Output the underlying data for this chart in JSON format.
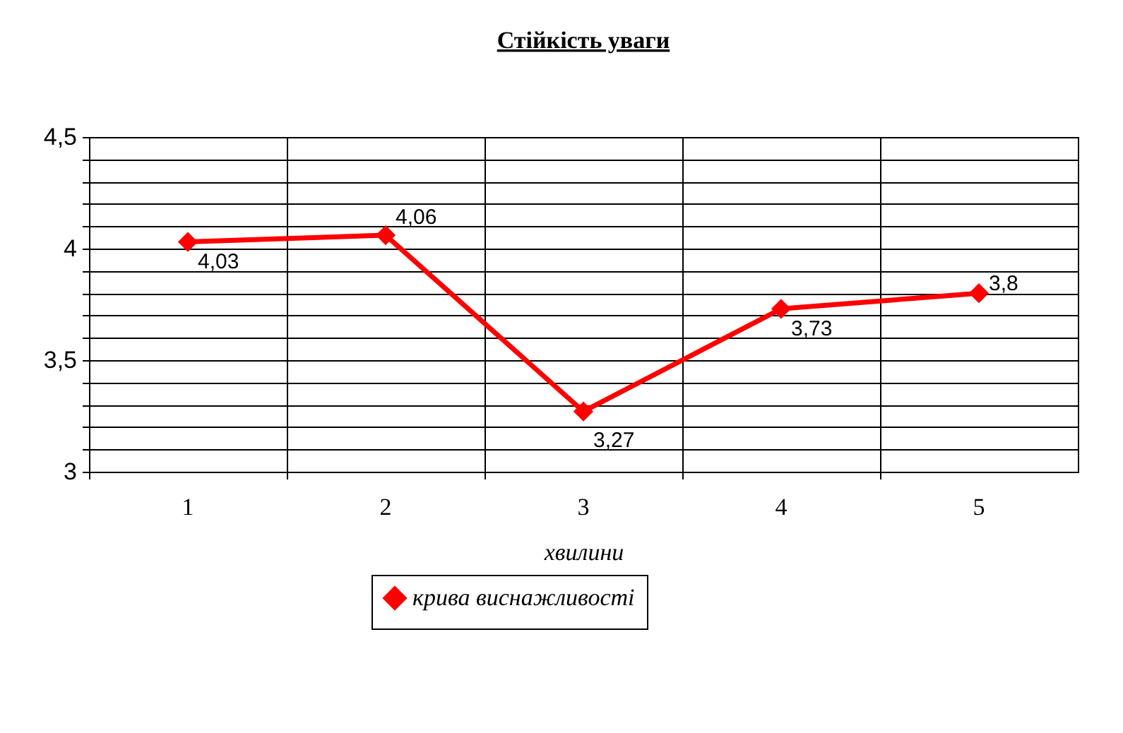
{
  "chart_data": {
    "type": "line",
    "title": "Стійкість уваги",
    "xlabel": "хвилини",
    "categories": [
      "1",
      "2",
      "3",
      "4",
      "5"
    ],
    "series": [
      {
        "name": "крива виснажливості",
        "color": "#ff0000",
        "values": [
          4.03,
          4.06,
          3.27,
          3.73,
          3.8
        ],
        "value_labels": [
          "4,03",
          "4,06",
          "3,27",
          "3,73",
          "3,8"
        ]
      }
    ],
    "ylim": [
      3,
      4.5
    ],
    "yticks": [
      3,
      {
        "value": 3.1,
        "label": null
      },
      {
        "value": 3.2,
        "label": null
      },
      {
        "value": 3.3,
        "label": null
      },
      {
        "value": 3.4,
        "label": null
      },
      {
        "value": 3.5,
        "label": "3,5"
      },
      {
        "value": 3.6,
        "label": null
      },
      {
        "value": 3.7,
        "label": null
      },
      {
        "value": 3.8,
        "label": null
      },
      {
        "value": 3.9,
        "label": null
      },
      4,
      {
        "value": 4.1,
        "label": null
      },
      {
        "value": 4.2,
        "label": null
      },
      {
        "value": 4.3,
        "label": null
      },
      {
        "value": 4.4,
        "label": null
      },
      {
        "value": 4.5,
        "label": "4,5"
      }
    ],
    "grid": true,
    "legend": "bottom",
    "marker": "diamond",
    "line_style": "solid"
  }
}
